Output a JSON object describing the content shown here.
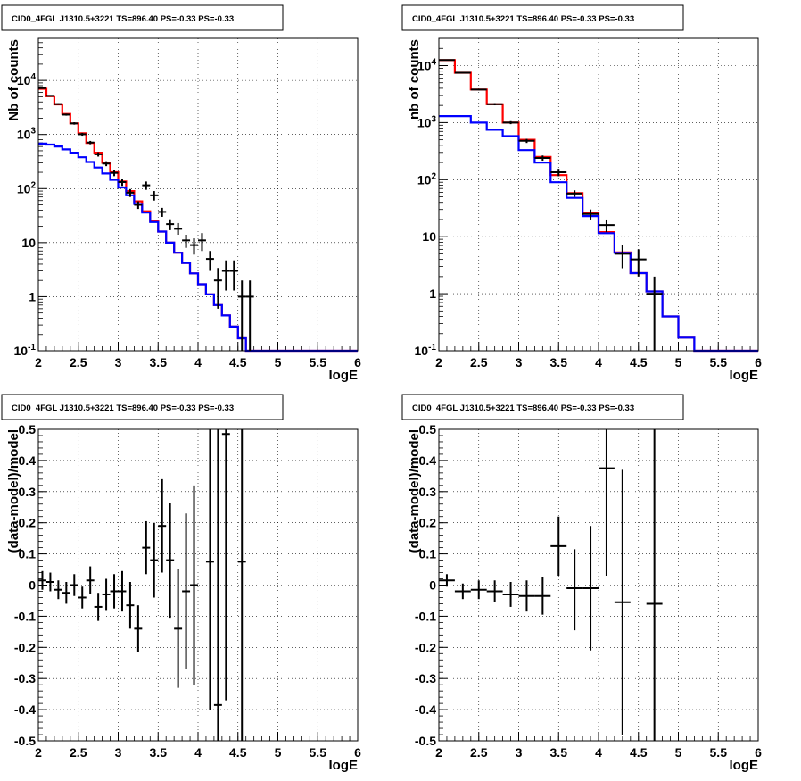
{
  "panels": [
    {
      "title": "CID0_4FGL J1310.5+3221 TS=896.40 PS=-0.33 PS=-0.33",
      "xlabel": "logE",
      "ylabel": "Nb of counts"
    },
    {
      "title": "CID0_4FGL J1310.5+3221 TS=896.40 PS=-0.33 PS=-0.33",
      "xlabel": "logE",
      "ylabel": "nb of counts"
    },
    {
      "title": "CID0_4FGL J1310.5+3221 TS=896.40 PS=-0.33 PS=-0.33",
      "xlabel": "logE",
      "ylabel": "(data-model)/model"
    },
    {
      "title": "CID0_4FGL J1310.5+3221 TS=896.40 PS=-0.33 PS=-0.33",
      "xlabel": "logE",
      "ylabel": "(data-model)/model"
    }
  ],
  "colors": {
    "model_total": "#ff0000",
    "model_component": "#0000ff",
    "data": "#000000"
  },
  "chart_data": [
    {
      "type": "line",
      "title": "CID0_4FGL J1310.5+3221 TS=896.40 PS=-0.33 PS=-0.33",
      "xlabel": "logE",
      "ylabel": "Nb of counts",
      "log_y": true,
      "xlim": [
        2,
        6
      ],
      "ylim": [
        0.1,
        60000
      ],
      "grid": true,
      "x_ticks": [
        "2",
        "2.5",
        "3",
        "3.5",
        "4",
        "4.5",
        "5",
        "5.5",
        "6"
      ],
      "y_ticks": [
        "10^-1",
        "1",
        "10",
        "10^2",
        "10^3",
        "10^4"
      ],
      "bin_edges": [
        2.0,
        2.1,
        2.2,
        2.3,
        2.4,
        2.5,
        2.6,
        2.7,
        2.8,
        2.9,
        3.0,
        3.1,
        3.2,
        3.3,
        3.4,
        3.5,
        3.6,
        3.7,
        3.8,
        3.9,
        4.0,
        4.1,
        4.2,
        4.3,
        4.4,
        4.5,
        4.6,
        4.7,
        4.8,
        4.9,
        5.0,
        5.1,
        5.2,
        5.3,
        5.4,
        5.5,
        5.6,
        5.7,
        5.8,
        5.9,
        6.0
      ],
      "series": [
        {
          "name": "",
          "style": "step",
          "color": "#ff0000",
          "values": [
            7000,
            5100,
            3600,
            2400,
            1600,
            1050,
            700,
            460,
            300,
            200,
            135,
            90,
            58,
            38,
            25,
            16,
            10,
            6.5,
            4.2,
            2.7,
            1.7,
            1.1,
            0.7,
            0.45,
            0.28,
            0.17,
            0.1,
            0.1,
            0.1,
            0.1,
            0.1,
            0.1,
            0.1,
            0.1,
            0.1,
            0.1,
            0.1,
            0.1,
            0.1,
            0.1
          ]
        },
        {
          "name": "",
          "style": "step",
          "color": "#0000ff",
          "values": [
            680,
            650,
            600,
            530,
            460,
            380,
            310,
            245,
            190,
            145,
            105,
            75,
            52,
            36,
            24,
            16,
            10,
            6.5,
            4.2,
            2.7,
            1.7,
            1.1,
            0.7,
            0.45,
            0.28,
            0.17,
            0.1,
            0.1,
            0.1,
            0.1,
            0.1,
            0.1,
            0.1,
            0.1,
            0.1,
            0.1,
            0.1,
            0.1,
            0.1,
            0.1
          ]
        }
      ],
      "points": [
        {
          "x": 2.05,
          "y": 7200,
          "ylo": 7050,
          "yhi": 7350
        },
        {
          "x": 2.15,
          "y": 5200,
          "ylo": 5060,
          "yhi": 5340
        },
        {
          "x": 2.25,
          "y": 3650,
          "ylo": 3530,
          "yhi": 3770
        },
        {
          "x": 2.35,
          "y": 2330,
          "ylo": 2230,
          "yhi": 2430
        },
        {
          "x": 2.45,
          "y": 1600,
          "ylo": 1520,
          "yhi": 1680
        },
        {
          "x": 2.55,
          "y": 1010,
          "ylo": 950,
          "yhi": 1070
        },
        {
          "x": 2.65,
          "y": 710,
          "ylo": 660,
          "yhi": 760
        },
        {
          "x": 2.75,
          "y": 430,
          "ylo": 390,
          "yhi": 470
        },
        {
          "x": 2.85,
          "y": 290,
          "ylo": 260,
          "yhi": 320
        },
        {
          "x": 2.95,
          "y": 195,
          "ylo": 170,
          "yhi": 220
        },
        {
          "x": 3.05,
          "y": 132,
          "ylo": 112,
          "yhi": 152
        },
        {
          "x": 3.15,
          "y": 84,
          "ylo": 70,
          "yhi": 98
        },
        {
          "x": 3.25,
          "y": 50,
          "ylo": 42,
          "yhi": 58
        },
        {
          "x": 3.35,
          "y": 115,
          "ylo": 95,
          "yhi": 135
        },
        {
          "x": 3.45,
          "y": 75,
          "ylo": 60,
          "yhi": 90
        },
        {
          "x": 3.55,
          "y": 37,
          "ylo": 30,
          "yhi": 44
        },
        {
          "x": 3.65,
          "y": 22,
          "ylo": 17,
          "yhi": 27
        },
        {
          "x": 3.75,
          "y": 18,
          "ylo": 14,
          "yhi": 23
        },
        {
          "x": 3.85,
          "y": 11,
          "ylo": 8,
          "yhi": 14
        },
        {
          "x": 3.95,
          "y": 9,
          "ylo": 6,
          "yhi": 12
        },
        {
          "x": 4.05,
          "y": 11,
          "ylo": 7,
          "yhi": 15
        },
        {
          "x": 4.15,
          "y": 5,
          "ylo": 3,
          "yhi": 7
        },
        {
          "x": 4.25,
          "y": 2,
          "ylo": 0.6,
          "yhi": 3.4
        },
        {
          "x": 4.35,
          "y": 3,
          "ylo": 1.3,
          "yhi": 4.7
        },
        {
          "x": 4.45,
          "y": 3,
          "ylo": 1.3,
          "yhi": 4.7
        },
        {
          "x": 4.55,
          "y": 1,
          "ylo": 0.1,
          "yhi": 2
        },
        {
          "x": 4.65,
          "y": 1,
          "ylo": 0.1,
          "yhi": 2
        }
      ]
    },
    {
      "type": "line",
      "title": "CID0_4FGL J1310.5+3221 TS=896.40 PS=-0.33 PS=-0.33",
      "xlabel": "logE",
      "ylabel": "nb of counts",
      "log_y": true,
      "xlim": [
        2,
        6
      ],
      "ylim": [
        0.1,
        30000
      ],
      "grid": true,
      "x_ticks": [
        "2",
        "2.5",
        "3",
        "3.5",
        "4",
        "4.5",
        "5",
        "5.5",
        "6"
      ],
      "y_ticks": [
        "10^-1",
        "1",
        "10",
        "10^2",
        "10^3",
        "10^4"
      ],
      "bin_edges": [
        2.0,
        2.2,
        2.4,
        2.6,
        2.8,
        3.0,
        3.2,
        3.4,
        3.6,
        3.8,
        4.0,
        4.2,
        4.4,
        4.6,
        4.8,
        5.0,
        5.2,
        5.4,
        5.6,
        5.8,
        6.0
      ],
      "series": [
        {
          "name": "",
          "style": "step",
          "color": "#ff0000",
          "values": [
            12500,
            7500,
            3800,
            2100,
            1000,
            500,
            250,
            120,
            58,
            26,
            12,
            5.3,
            2.3,
            1.1,
            0.4,
            0.17,
            0.1,
            0.1,
            0.1,
            0.1
          ]
        },
        {
          "name": "",
          "style": "step",
          "color": "#0000ff",
          "values": [
            1300,
            1300,
            1000,
            750,
            580,
            330,
            200,
            90,
            48,
            23,
            11.5,
            5.2,
            2.3,
            1.1,
            0.4,
            0.17,
            0.1,
            0.1,
            0.1,
            0.1
          ]
        }
      ],
      "points": [
        {
          "x": 2.1,
          "y": 12500,
          "ylo": 12280,
          "yhi": 12720
        },
        {
          "x": 2.3,
          "y": 7500,
          "ylo": 7330,
          "yhi": 7670
        },
        {
          "x": 2.5,
          "y": 3800,
          "ylo": 3680,
          "yhi": 3920
        },
        {
          "x": 2.7,
          "y": 2100,
          "ylo": 2010,
          "yhi": 2190
        },
        {
          "x": 2.9,
          "y": 1000,
          "ylo": 940,
          "yhi": 1060
        },
        {
          "x": 3.1,
          "y": 480,
          "ylo": 440,
          "yhi": 520
        },
        {
          "x": 3.3,
          "y": 240,
          "ylo": 215,
          "yhi": 265
        },
        {
          "x": 3.5,
          "y": 135,
          "ylo": 115,
          "yhi": 155
        },
        {
          "x": 3.7,
          "y": 57,
          "ylo": 50,
          "yhi": 65
        },
        {
          "x": 3.9,
          "y": 25,
          "ylo": 20,
          "yhi": 30
        },
        {
          "x": 4.1,
          "y": 16,
          "ylo": 12,
          "yhi": 20
        },
        {
          "x": 4.3,
          "y": 5,
          "ylo": 2.8,
          "yhi": 7.2
        },
        {
          "x": 4.5,
          "y": 4,
          "ylo": 2,
          "yhi": 6
        },
        {
          "x": 4.7,
          "y": 1,
          "ylo": 0.1,
          "yhi": 2
        }
      ]
    },
    {
      "type": "scatter",
      "title": "CID0_4FGL J1310.5+3221 TS=896.40 PS=-0.33 PS=-0.33",
      "xlabel": "logE",
      "ylabel": "(data-model)/model",
      "xlim": [
        2,
        6
      ],
      "ylim": [
        -0.5,
        0.5
      ],
      "grid": true,
      "x_ticks": [
        "2",
        "2.5",
        "3",
        "3.5",
        "4",
        "4.5",
        "5",
        "5.5",
        "6"
      ],
      "y_ticks": [
        "-0.5",
        "-0.4",
        "-0.3",
        "-0.2",
        "-0.1",
        "0",
        "0.1",
        "0.2",
        "0.3",
        "0.4",
        "0.5"
      ],
      "x_halfwidth": 0.05,
      "points": [
        {
          "x": 2.05,
          "y": 0.015,
          "ylo": -0.015,
          "yhi": 0.045
        },
        {
          "x": 2.15,
          "y": 0.01,
          "ylo": -0.02,
          "yhi": 0.04
        },
        {
          "x": 2.25,
          "y": -0.015,
          "ylo": -0.045,
          "yhi": 0.015
        },
        {
          "x": 2.35,
          "y": -0.025,
          "ylo": -0.06,
          "yhi": 0.01
        },
        {
          "x": 2.45,
          "y": 0.0,
          "ylo": -0.035,
          "yhi": 0.035
        },
        {
          "x": 2.55,
          "y": -0.04,
          "ylo": -0.075,
          "yhi": -0.005
        },
        {
          "x": 2.65,
          "y": 0.015,
          "ylo": -0.03,
          "yhi": 0.06
        },
        {
          "x": 2.75,
          "y": -0.07,
          "ylo": -0.115,
          "yhi": -0.025
        },
        {
          "x": 2.85,
          "y": -0.03,
          "ylo": -0.08,
          "yhi": 0.02
        },
        {
          "x": 2.95,
          "y": -0.02,
          "ylo": -0.075,
          "yhi": 0.035
        },
        {
          "x": 3.05,
          "y": -0.02,
          "ylo": -0.085,
          "yhi": 0.045
        },
        {
          "x": 3.15,
          "y": -0.065,
          "ylo": -0.14,
          "yhi": 0.01
        },
        {
          "x": 3.25,
          "y": -0.14,
          "ylo": -0.215,
          "yhi": -0.065
        },
        {
          "x": 3.35,
          "y": 0.12,
          "ylo": 0.035,
          "yhi": 0.205
        },
        {
          "x": 3.45,
          "y": 0.08,
          "ylo": -0.04,
          "yhi": 0.2
        },
        {
          "x": 3.55,
          "y": 0.19,
          "ylo": 0.04,
          "yhi": 0.34
        },
        {
          "x": 3.65,
          "y": 0.08,
          "ylo": -0.105,
          "yhi": 0.265
        },
        {
          "x": 3.75,
          "y": -0.14,
          "ylo": -0.33,
          "yhi": 0.05
        },
        {
          "x": 3.85,
          "y": -0.02,
          "ylo": -0.27,
          "yhi": 0.23
        },
        {
          "x": 3.95,
          "y": 0.0,
          "ylo": -0.32,
          "yhi": 0.32
        },
        {
          "x": 4.15,
          "y": 0.075,
          "ylo": -0.4,
          "yhi": 0.5
        },
        {
          "x": 4.25,
          "y": -0.385,
          "ylo": -0.5,
          "yhi": 0.5
        },
        {
          "x": 4.35,
          "y": 0.485,
          "ylo": -0.37,
          "yhi": 0.5
        },
        {
          "x": 4.55,
          "y": 0.075,
          "ylo": -0.5,
          "yhi": 0.5
        }
      ]
    },
    {
      "type": "scatter",
      "title": "CID0_4FGL J1310.5+3221 TS=896.40 PS=-0.33 PS=-0.33",
      "xlabel": "logE",
      "ylabel": "(data-model)/model",
      "xlim": [
        2,
        6
      ],
      "ylim": [
        -0.5,
        0.5
      ],
      "grid": true,
      "x_ticks": [
        "2",
        "2.5",
        "3",
        "3.5",
        "4",
        "4.5",
        "5",
        "5.5",
        "6"
      ],
      "y_ticks": [
        "-0.5",
        "-0.4",
        "-0.3",
        "-0.2",
        "-0.1",
        "0",
        "0.1",
        "0.2",
        "0.3",
        "0.4",
        "0.5"
      ],
      "x_halfwidth": 0.1,
      "points": [
        {
          "x": 2.1,
          "y": 0.015,
          "ylo": -0.005,
          "yhi": 0.035
        },
        {
          "x": 2.3,
          "y": -0.02,
          "ylo": -0.045,
          "yhi": 0.005
        },
        {
          "x": 2.5,
          "y": -0.015,
          "ylo": -0.045,
          "yhi": 0.015
        },
        {
          "x": 2.7,
          "y": -0.02,
          "ylo": -0.055,
          "yhi": 0.015
        },
        {
          "x": 2.9,
          "y": -0.03,
          "ylo": -0.07,
          "yhi": 0.01
        },
        {
          "x": 3.1,
          "y": -0.035,
          "ylo": -0.085,
          "yhi": 0.015
        },
        {
          "x": 3.3,
          "y": -0.035,
          "ylo": -0.095,
          "yhi": 0.025
        },
        {
          "x": 3.5,
          "y": 0.125,
          "ylo": 0.03,
          "yhi": 0.22
        },
        {
          "x": 3.7,
          "y": -0.01,
          "ylo": -0.145,
          "yhi": 0.115
        },
        {
          "x": 3.9,
          "y": -0.01,
          "ylo": -0.21,
          "yhi": 0.19
        },
        {
          "x": 4.1,
          "y": 0.375,
          "ylo": 0.03,
          "yhi": 0.5
        },
        {
          "x": 4.3,
          "y": -0.055,
          "ylo": -0.48,
          "yhi": 0.37
        },
        {
          "x": 4.7,
          "y": -0.06,
          "ylo": -0.5,
          "yhi": 0.5
        }
      ]
    }
  ]
}
